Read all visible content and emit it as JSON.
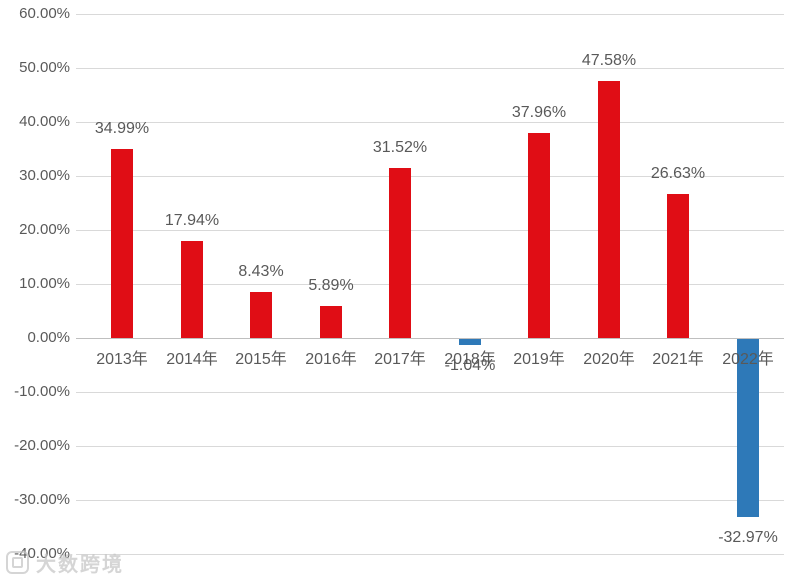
{
  "watermark": {
    "icon": "logo-icon",
    "text": "大数跨境"
  },
  "chart_data": {
    "type": "bar",
    "title": "",
    "xlabel": "",
    "ylabel": "",
    "categories": [
      "2013年",
      "2014年",
      "2015年",
      "2016年",
      "2017年",
      "2018年",
      "2019年",
      "2020年",
      "2021年",
      "2022年"
    ],
    "values": [
      34.99,
      17.94,
      8.43,
      5.89,
      31.52,
      -1.04,
      37.96,
      47.58,
      26.63,
      -32.97
    ],
    "data_labels": [
      "34.99%",
      "17.94%",
      "8.43%",
      "5.89%",
      "31.52%",
      "-1.04%",
      "37.96%",
      "47.58%",
      "26.63%",
      "-32.97%"
    ],
    "ytick_values": [
      60,
      50,
      40,
      30,
      20,
      10,
      0,
      -10,
      -20,
      -30,
      -40
    ],
    "ytick_labels": [
      "60.00%",
      "50.00%",
      "40.00%",
      "30.00%",
      "20.00%",
      "10.00%",
      "0.00%",
      "-10.00%",
      "-20.00%",
      "-30.00%",
      "-40.00%"
    ],
    "ylim": [
      -40,
      60
    ],
    "grid": true,
    "legend": false,
    "colors": {
      "positive_bar": "#e00d15",
      "negative_bar": "#2e79b8",
      "text": "#595959",
      "gridline": "#d9d9d9",
      "axis_line": "#bfbfbf",
      "watermark": "#c6c6c6",
      "background": "#ffffff"
    }
  }
}
